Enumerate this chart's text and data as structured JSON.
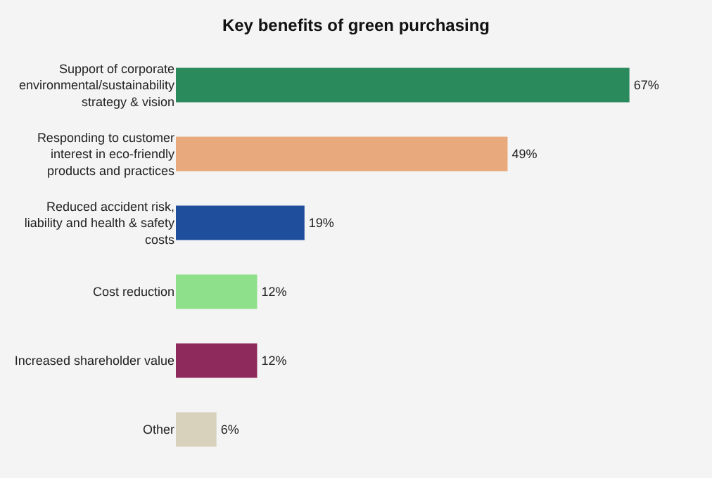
{
  "chart_data": {
    "type": "bar",
    "orientation": "horizontal",
    "title": "Key benefits of green purchasing",
    "categories": [
      "Support of corporate environmental/sustainability strategy & vision",
      "Responding to customer interest in eco-friendly products and practices",
      "Reduced accident risk, liability and health & safety costs",
      "Cost reduction",
      "Increased shareholder value",
      "Other"
    ],
    "values": [
      67,
      49,
      19,
      12,
      12,
      6
    ],
    "value_labels": [
      "67%",
      "49%",
      "19%",
      "12%",
      "12%",
      "6%"
    ],
    "colors": [
      "#2a8a5c",
      "#e8aa7c",
      "#1f4f9c",
      "#8ee08a",
      "#8e2a5c",
      "#d8d2bc"
    ]
  }
}
